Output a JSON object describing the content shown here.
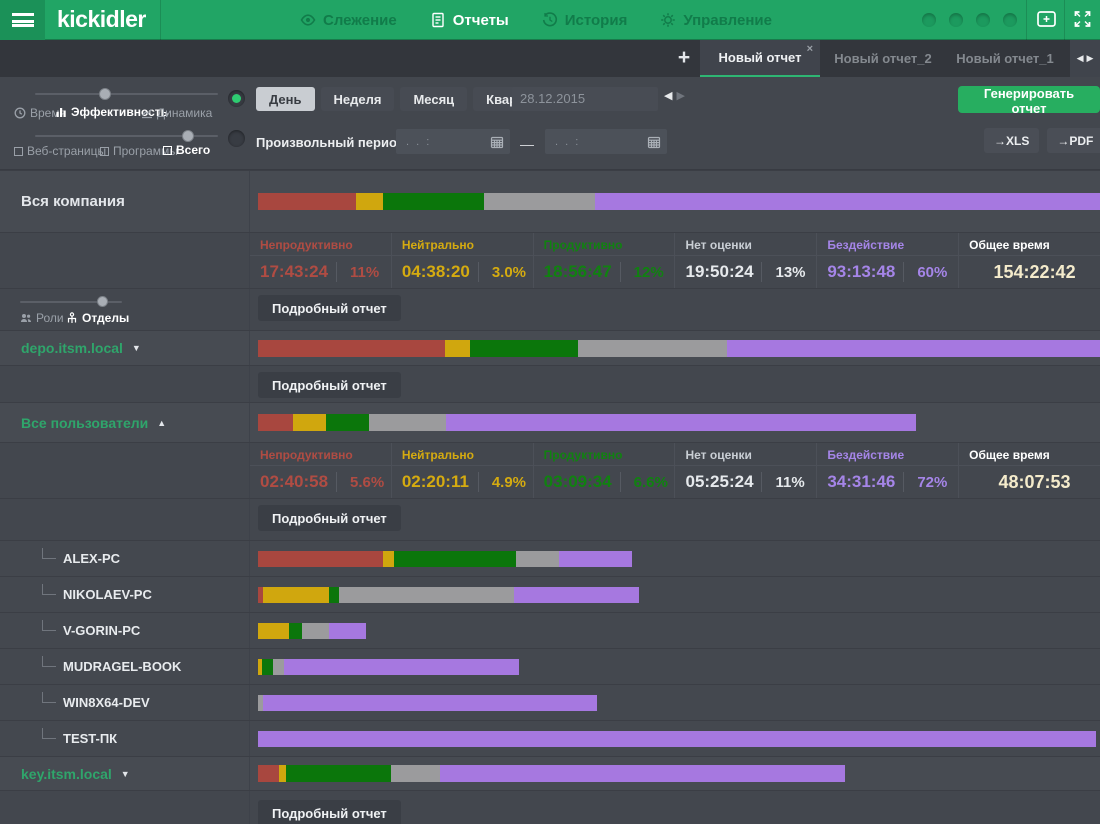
{
  "palette": {
    "header_green": "#21a565",
    "header_dark": "#1b9158",
    "circle_green": "#1c9a5e",
    "nav_inactive": "#117c4a",
    "accent_green": "#27ae60",
    "link_green": "#2fa56b",
    "bar_red": "#a8473f",
    "bar_yellow": "#d0a70e",
    "bar_green": "#0b760b",
    "bar_grey": "#9b9b9d",
    "bar_purple": "#a678e0",
    "stat_red": "#b04c43",
    "stat_yellow": "#d5ab10",
    "stat_green": "#108210",
    "stat_grey": "#e6e9ec",
    "stat_grey_label": "#c9ced4",
    "stat_purple": "#a585e8",
    "stat_total": "#f4ebcb"
  },
  "header": {
    "logo": "kickidler",
    "nav": [
      {
        "label": "Слежение",
        "active": false
      },
      {
        "label": "Отчеты",
        "active": true
      },
      {
        "label": "История",
        "active": false
      },
      {
        "label": "Управление",
        "active": false
      }
    ]
  },
  "tabs": {
    "add_label": "+",
    "items": [
      {
        "label": "Новый отчет",
        "active": true,
        "closable": true
      },
      {
        "label": "Новый отчет_2",
        "active": false
      },
      {
        "label": "Новый отчет_1",
        "active": false
      }
    ]
  },
  "filters": {
    "mode_slider": {
      "options": [
        {
          "label": "Время"
        },
        {
          "label": "Эффективность",
          "selected": true
        },
        {
          "label": "Динамика"
        }
      ]
    },
    "scope_slider": {
      "options": [
        {
          "label": "Веб-страницы"
        },
        {
          "label": "Программы"
        },
        {
          "label": "Всего",
          "selected": true
        }
      ]
    },
    "periods": [
      {
        "label": "День",
        "selected": true
      },
      {
        "label": "Неделя"
      },
      {
        "label": "Месяц"
      },
      {
        "label": "Квартал"
      }
    ],
    "date_value": "28.12.2015",
    "custom_period_label": "Произвольный период:",
    "custom_from_placeholder": ". .  :",
    "custom_to_placeholder": ". .  :",
    "dash": "—",
    "generate_label": "Генерировать отчет",
    "export_xls": "→XLS",
    "export_pdf": "→PDF"
  },
  "group_slider": {
    "options": [
      {
        "label": "Роли"
      },
      {
        "label": "Отделы",
        "selected": true
      }
    ]
  },
  "detail_label": "Подробный отчет",
  "stat_columns": [
    "Непродуктивно",
    "Нейтрально",
    "Продуктивно",
    "Нет оценки",
    "Бездействие",
    "Общее время"
  ],
  "report": {
    "rows": [
      {
        "kind": "company",
        "label": "Вся компания",
        "bar": [
          [
            "red",
            11.6
          ],
          [
            "yellow",
            3.2
          ],
          [
            "green",
            12.0
          ],
          [
            "grey",
            13.2
          ],
          [
            "purple",
            60.0
          ]
        ],
        "stats": {
          "unproductive": {
            "time": "17:43:24",
            "pct": "11%"
          },
          "neutral": {
            "time": "04:38:20",
            "pct": "3.0%"
          },
          "productive": {
            "time": "18:56:47",
            "pct": "12%"
          },
          "unrated": {
            "time": "19:50:24",
            "pct": "13%"
          },
          "idle": {
            "time": "93:13:48",
            "pct": "60%"
          },
          "total": {
            "time": "154:22:42"
          }
        }
      },
      {
        "kind": "domain",
        "label": "depo.itsm.local",
        "arrow": "▼",
        "bar": [
          [
            "red",
            22.2
          ],
          [
            "yellow",
            3.0
          ],
          [
            "green",
            12.8
          ],
          [
            "grey",
            17.7
          ],
          [
            "purple",
            44.3
          ]
        ]
      },
      {
        "kind": "users",
        "label": "Все пользователи",
        "arrow": "▲",
        "bar": [
          [
            "red",
            4.2
          ],
          [
            "yellow",
            3.9
          ],
          [
            "green",
            5.1
          ],
          [
            "grey",
            9.1
          ],
          [
            "purple",
            55.9
          ]
        ],
        "stats": {
          "unproductive": {
            "time": "02:40:58",
            "pct": "5.6%"
          },
          "neutral": {
            "time": "02:20:11",
            "pct": "4.9%"
          },
          "productive": {
            "time": "03:09:34",
            "pct": "6.6%"
          },
          "unrated": {
            "time": "05:25:24",
            "pct": "11%"
          },
          "idle": {
            "time": "34:31:46",
            "pct": "72%"
          },
          "total": {
            "time": "48:07:53"
          }
        }
      },
      {
        "kind": "computer",
        "label": "ALEX-PC",
        "bar": [
          [
            "red",
            14.8
          ],
          [
            "yellow",
            1.4
          ],
          [
            "green",
            14.5
          ],
          [
            "grey",
            5.0
          ],
          [
            "purple",
            8.7
          ]
        ]
      },
      {
        "kind": "computer",
        "label": "NIKOLAEV-PC",
        "bar": [
          [
            "red",
            0.6
          ],
          [
            "yellow",
            7.8
          ],
          [
            "green",
            1.2
          ],
          [
            "grey",
            20.8
          ],
          [
            "purple",
            14.8
          ]
        ]
      },
      {
        "kind": "computer",
        "label": "V-GORIN-PC",
        "bar": [
          [
            "yellow",
            3.7
          ],
          [
            "green",
            1.5
          ],
          [
            "grey",
            3.2
          ],
          [
            "purple",
            4.4
          ]
        ]
      },
      {
        "kind": "computer",
        "label": "MUDRAGEL-BOOK",
        "bar": [
          [
            "yellow",
            0.5
          ],
          [
            "green",
            1.3
          ],
          [
            "grey",
            1.3
          ],
          [
            "purple",
            27.9
          ]
        ]
      },
      {
        "kind": "computer",
        "label": "WIN8X64-DEV",
        "bar": [
          [
            "grey",
            0.6
          ],
          [
            "purple",
            39.7
          ]
        ]
      },
      {
        "kind": "computer",
        "label": "TEST-ПК",
        "bar": [
          [
            "purple",
            99.5
          ]
        ]
      },
      {
        "kind": "domain",
        "label": "key.itsm.local",
        "arrow": "▼",
        "bar": [
          [
            "red",
            2.5
          ],
          [
            "yellow",
            0.8
          ],
          [
            "green",
            12.5
          ],
          [
            "grey",
            5.8
          ],
          [
            "purple",
            48.1
          ]
        ]
      }
    ]
  }
}
